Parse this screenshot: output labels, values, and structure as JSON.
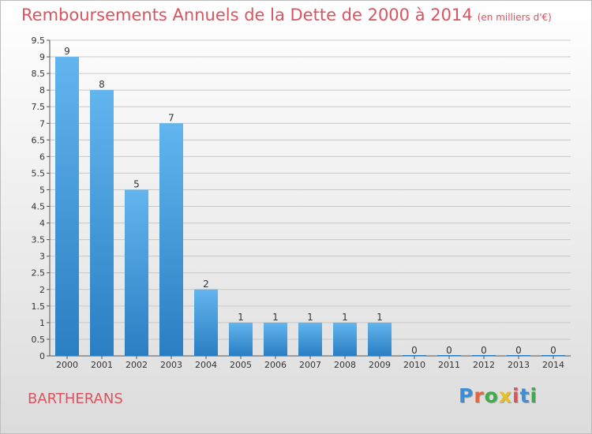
{
  "header": {
    "title": "Remboursements Annuels de la Dette de 2000 à 2014",
    "unit": "(en milliers d'€)"
  },
  "footer": {
    "town": "BARTHERANS",
    "logo_letters": [
      "P",
      "r",
      "o",
      "x",
      "i",
      "t",
      "i"
    ],
    "logo_colors": [
      "#3a8fd8",
      "#e8643c",
      "#3cae49",
      "#e4c020",
      "#d9545e",
      "#3a8fd8",
      "#3cae49"
    ]
  },
  "colors": {
    "bar_top": "#62b5ee",
    "bar_bottom": "#2a7ec2",
    "title": "#d9545e",
    "grid": "#c8c8c8"
  },
  "chart_data": {
    "type": "bar",
    "categories": [
      "2000",
      "2001",
      "2002",
      "2003",
      "2004",
      "2005",
      "2006",
      "2007",
      "2008",
      "2009",
      "2010",
      "2011",
      "2012",
      "2013",
      "2014"
    ],
    "values": [
      9,
      8,
      5,
      7,
      2,
      1,
      1,
      1,
      1,
      1,
      0,
      0,
      0,
      0,
      0
    ],
    "data_labels": [
      "9",
      "8",
      "5",
      "7",
      "2",
      "1",
      "1",
      "1",
      "1",
      "1",
      "0",
      "0",
      "0",
      "0",
      "0"
    ],
    "ylim": [
      0,
      9.5
    ],
    "yticks": [
      "0",
      "0.5",
      "1",
      "1.5",
      "2",
      "2.5",
      "3",
      "3.5",
      "4",
      "4.5",
      "5",
      "5.5",
      "6",
      "6.5",
      "7",
      "7.5",
      "8",
      "8.5",
      "9",
      "9.5"
    ],
    "ytick_values": [
      0,
      0.5,
      1,
      1.5,
      2,
      2.5,
      3,
      3.5,
      4,
      4.5,
      5,
      5.5,
      6,
      6.5,
      7,
      7.5,
      8,
      8.5,
      9,
      9.5
    ],
    "grid": true
  }
}
